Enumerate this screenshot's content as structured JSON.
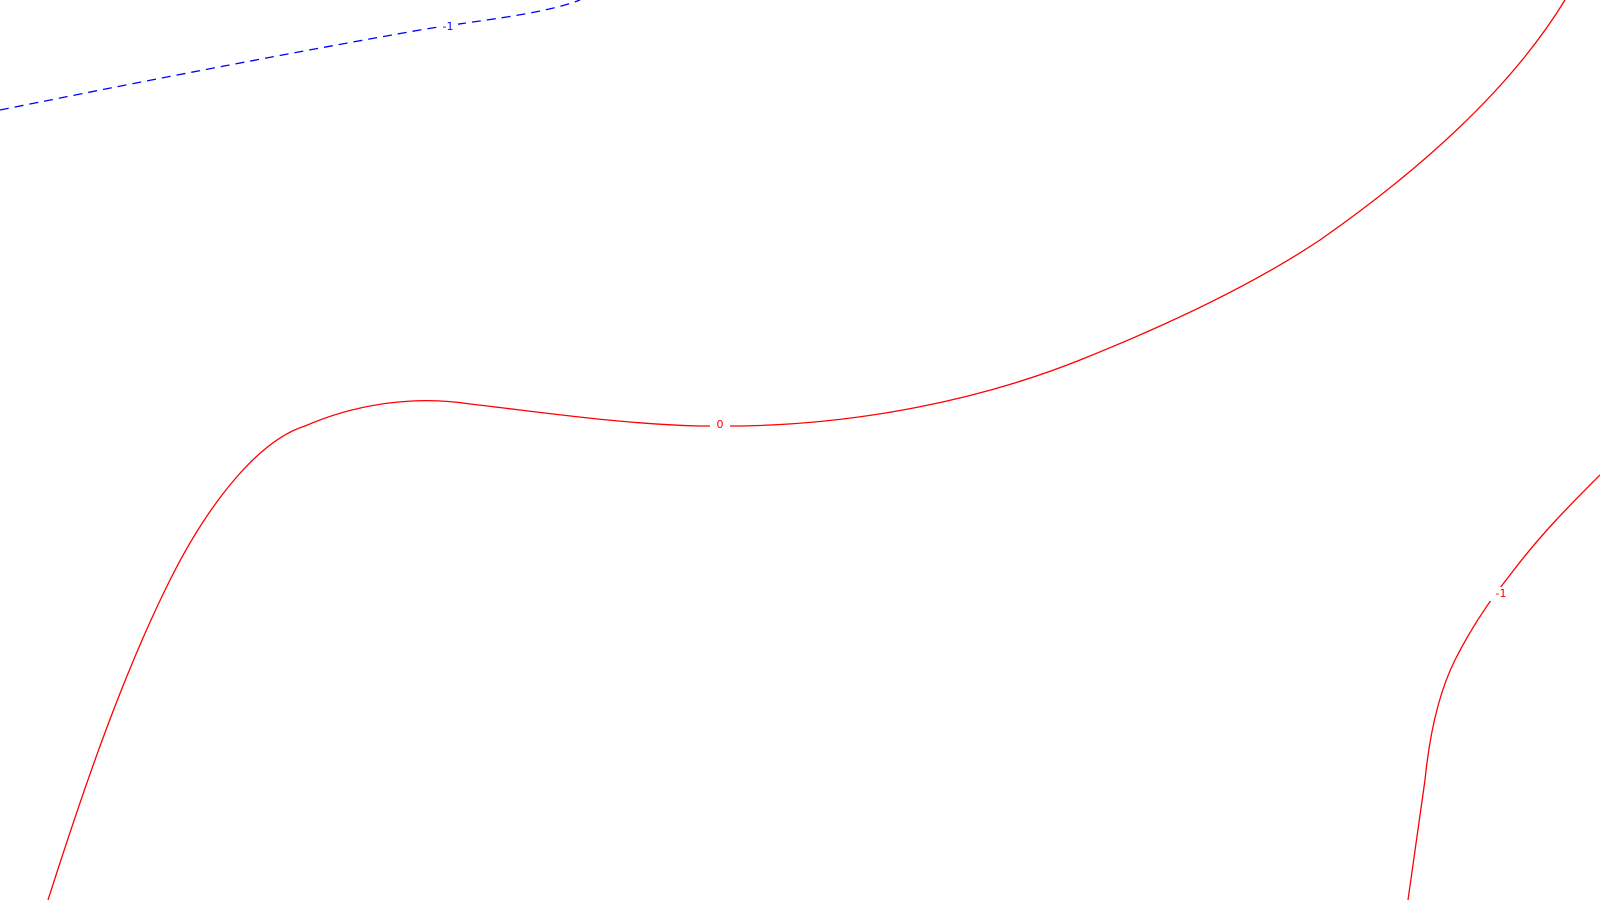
{
  "map": {
    "background_color": "#ffffff",
    "contours": [
      {
        "id": "contour-neg1-blue",
        "level_label": "-1",
        "color": "#0000ff",
        "style": "dashed"
      },
      {
        "id": "contour-0-red",
        "level_label": "0",
        "color": "#ff0000",
        "style": "solid"
      },
      {
        "id": "contour-neg1-red",
        "level_label": "-1",
        "color": "#ff0000",
        "style": "solid"
      }
    ]
  }
}
